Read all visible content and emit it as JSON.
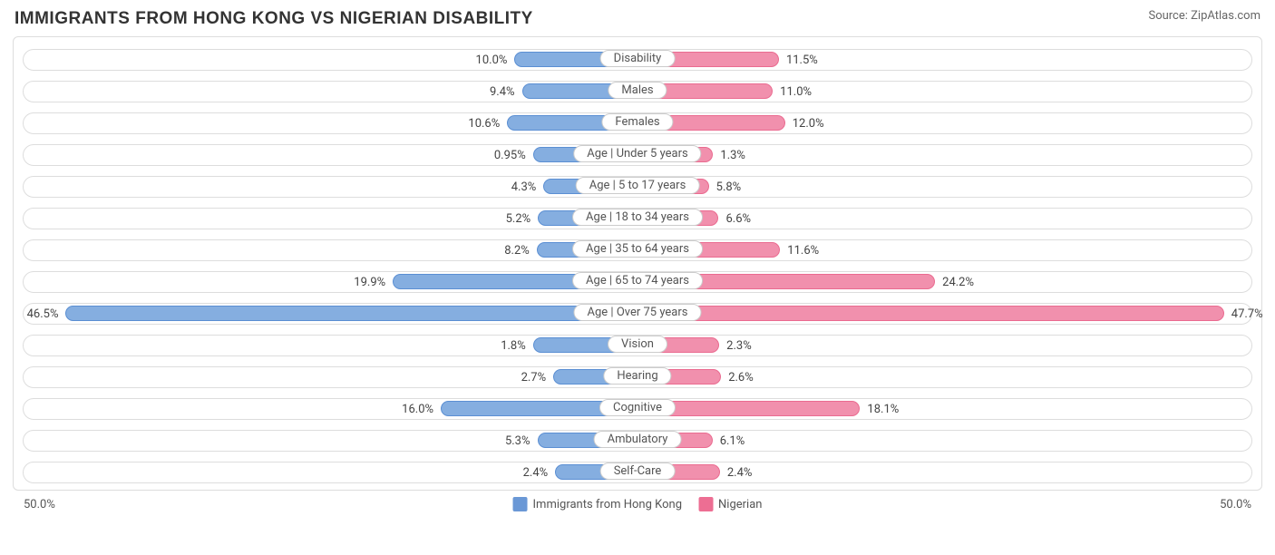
{
  "title": "IMMIGRANTS FROM HONG KONG VS NIGERIAN DISABILITY",
  "source": "Source: ZipAtlas.com",
  "axis_max": 50.0,
  "axis_label_left": "50.0%",
  "axis_label_right": "50.0%",
  "colors": {
    "left_fill": "#85aee0",
    "left_stroke": "#5b8fd3",
    "right_fill": "#f190ad",
    "right_stroke": "#ea6b90",
    "row_border": "#dddddd",
    "text": "#444444",
    "bg": "#ffffff"
  },
  "legend": {
    "left": {
      "label": "Immigrants from Hong Kong",
      "color": "#6a98d6"
    },
    "right": {
      "label": "Nigerian",
      "color": "#ed6e93"
    }
  },
  "rows": [
    {
      "category": "Disability",
      "left_val": 10.0,
      "left_label": "10.0%",
      "right_val": 11.5,
      "right_label": "11.5%"
    },
    {
      "category": "Males",
      "left_val": 9.4,
      "left_label": "9.4%",
      "right_val": 11.0,
      "right_label": "11.0%"
    },
    {
      "category": "Females",
      "left_val": 10.6,
      "left_label": "10.6%",
      "right_val": 12.0,
      "right_label": "12.0%"
    },
    {
      "category": "Age | Under 5 years",
      "left_val": 0.95,
      "left_label": "0.95%",
      "right_val": 1.3,
      "right_label": "1.3%",
      "min_cap": true
    },
    {
      "category": "Age | 5 to 17 years",
      "left_val": 4.3,
      "left_label": "4.3%",
      "right_val": 5.8,
      "right_label": "5.8%"
    },
    {
      "category": "Age | 18 to 34 years",
      "left_val": 5.2,
      "left_label": "5.2%",
      "right_val": 6.6,
      "right_label": "6.6%"
    },
    {
      "category": "Age | 35 to 64 years",
      "left_val": 8.2,
      "left_label": "8.2%",
      "right_val": 11.6,
      "right_label": "11.6%"
    },
    {
      "category": "Age | 65 to 74 years",
      "left_val": 19.9,
      "left_label": "19.9%",
      "right_val": 24.2,
      "right_label": "24.2%"
    },
    {
      "category": "Age | Over 75 years",
      "left_val": 46.5,
      "left_label": "46.5%",
      "right_val": 47.7,
      "right_label": "47.7%"
    },
    {
      "category": "Vision",
      "left_val": 1.8,
      "left_label": "1.8%",
      "right_val": 2.3,
      "right_label": "2.3%",
      "min_cap": true
    },
    {
      "category": "Hearing",
      "left_val": 2.7,
      "left_label": "2.7%",
      "right_val": 2.6,
      "right_label": "2.6%"
    },
    {
      "category": "Cognitive",
      "left_val": 16.0,
      "left_label": "16.0%",
      "right_val": 18.1,
      "right_label": "18.1%"
    },
    {
      "category": "Ambulatory",
      "left_val": 5.3,
      "left_label": "5.3%",
      "right_val": 6.1,
      "right_label": "6.1%"
    },
    {
      "category": "Self-Care",
      "left_val": 2.4,
      "left_label": "2.4%",
      "right_val": 2.4,
      "right_label": "2.4%"
    }
  ]
}
